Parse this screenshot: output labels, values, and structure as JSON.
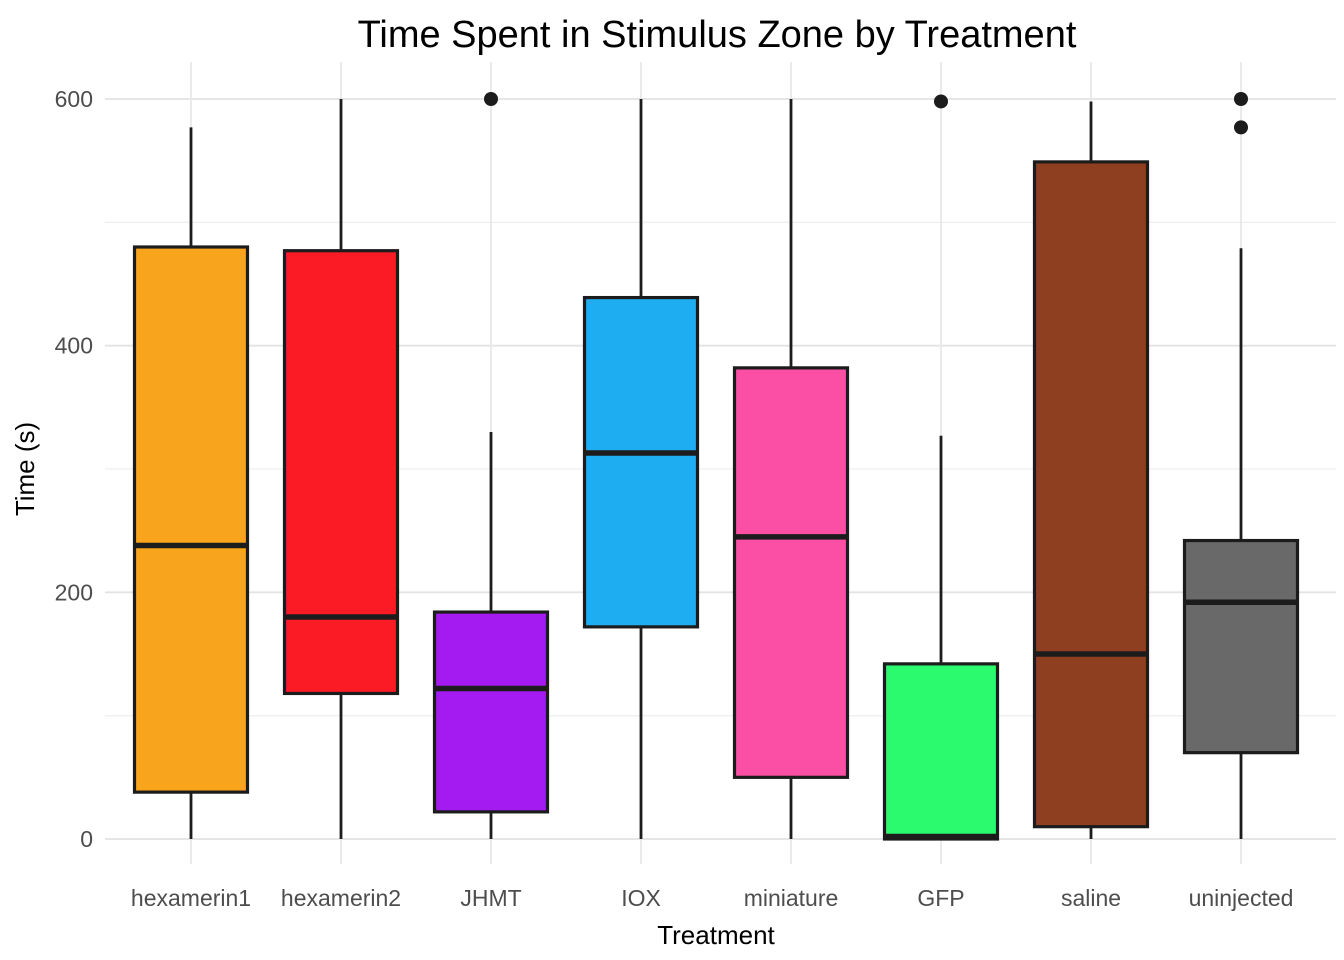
{
  "chart_data": {
    "type": "boxplot",
    "title": "Time Spent in Stimulus Zone by Treatment",
    "xlabel": "Treatment",
    "ylabel": "Time (s)",
    "ylim": [
      0,
      600
    ],
    "y_ticks": [
      0,
      200,
      400,
      600
    ],
    "y_minor_gridlines": [
      100,
      300,
      500
    ],
    "grid": true,
    "legend": "none",
    "categories": [
      "hexamerin1",
      "hexamerin2",
      "JHMT",
      "IOX",
      "miniature",
      "GFP",
      "saline",
      "uninjected"
    ],
    "series": [
      {
        "name": "hexamerin1",
        "color": "#F8A41D",
        "whisker_low": 0,
        "q1": 38,
        "median": 238,
        "q3": 480,
        "whisker_high": 577,
        "outliers": []
      },
      {
        "name": "hexamerin2",
        "color": "#FA1B25",
        "whisker_low": 0,
        "q1": 118,
        "median": 180,
        "q3": 477,
        "whisker_high": 600,
        "outliers": []
      },
      {
        "name": "JHMT",
        "color": "#A41BF2",
        "whisker_low": 0,
        "q1": 22,
        "median": 122,
        "q3": 184,
        "whisker_high": 330,
        "outliers": [
          600
        ]
      },
      {
        "name": "IOX",
        "color": "#1FADF2",
        "whisker_low": 0,
        "q1": 172,
        "median": 313,
        "q3": 439,
        "whisker_high": 600,
        "outliers": []
      },
      {
        "name": "miniature",
        "color": "#FA4FA5",
        "whisker_low": 0,
        "q1": 50,
        "median": 245,
        "q3": 382,
        "whisker_high": 600,
        "outliers": []
      },
      {
        "name": "GFP",
        "color": "#2CFA6E",
        "whisker_low": 0,
        "q1": 0,
        "median": 2,
        "q3": 142,
        "whisker_high": 327,
        "outliers": [
          598
        ]
      },
      {
        "name": "saline",
        "color": "#8E3F20",
        "whisker_low": 0,
        "q1": 10,
        "median": 150,
        "q3": 549,
        "whisker_high": 598,
        "outliers": []
      },
      {
        "name": "uninjected",
        "color": "#696969",
        "whisker_low": 0,
        "q1": 70,
        "median": 192,
        "q3": 242,
        "whisker_high": 479,
        "outliers": [
          600,
          577
        ]
      }
    ],
    "style": {
      "box_stroke": "#1C1C1C",
      "major_grid": "#E3E3E3",
      "minor_grid": "#EFEFEF",
      "vertical_grid": "#E8E8E8",
      "tick_label_color": "#4d4d4d"
    }
  }
}
